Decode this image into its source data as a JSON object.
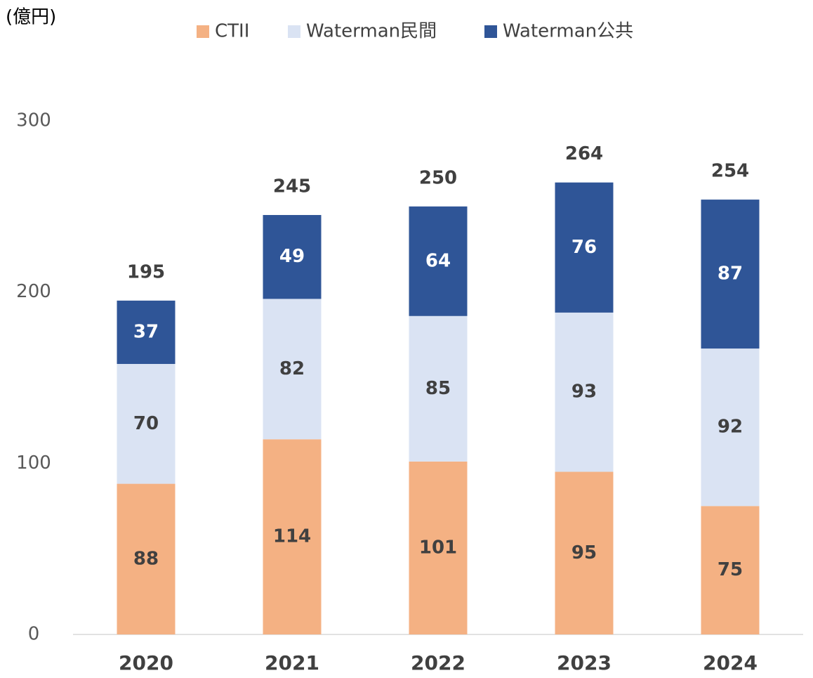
{
  "chart_data": {
    "type": "bar",
    "stacked": true,
    "unit_label": "(億円)",
    "categories": [
      "2020",
      "2021",
      "2022",
      "2023",
      "2024"
    ],
    "series": [
      {
        "name": "CTII",
        "color": "#f4b183",
        "values": [
          88,
          114,
          101,
          95,
          75
        ]
      },
      {
        "name": "Waterman民間",
        "color": "#dae3f3",
        "values": [
          70,
          82,
          85,
          93,
          92
        ]
      },
      {
        "name": "Waterman公共",
        "color": "#2f5597",
        "values": [
          37,
          49,
          64,
          76,
          87
        ]
      }
    ],
    "totals": [
      195,
      245,
      250,
      264,
      254
    ],
    "ylim": [
      0,
      300
    ],
    "yticks": [
      0,
      100,
      200,
      300
    ],
    "grid": false,
    "legend": "top"
  }
}
